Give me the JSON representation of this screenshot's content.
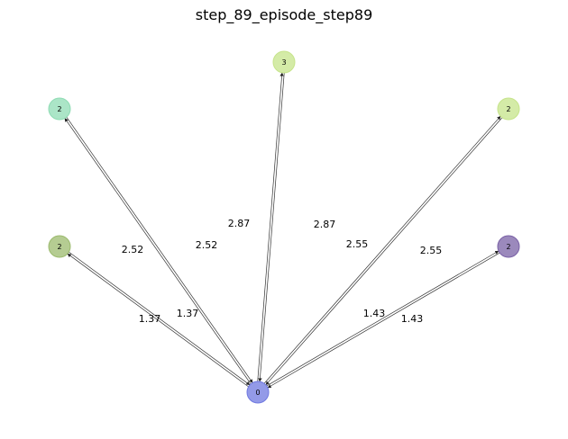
{
  "title": "step_89_episode_step89",
  "nodes": [
    {
      "id": "center",
      "label": "0",
      "color": "#6f78e0"
    },
    {
      "id": "top",
      "label": "3",
      "color": "#c6e48a"
    },
    {
      "id": "upper-left",
      "label": "2",
      "color": "#8fdcb4"
    },
    {
      "id": "upper-right",
      "label": "2",
      "color": "#c6e48a"
    },
    {
      "id": "left",
      "label": "2",
      "color": "#9cbb6e"
    },
    {
      "id": "right",
      "label": "2",
      "color": "#7a61a6"
    }
  ],
  "edges": [
    {
      "id": "center-top",
      "from": "center",
      "to": "top",
      "labels": [
        "2.87",
        "2.87"
      ]
    },
    {
      "id": "center-upper-left",
      "from": "center",
      "to": "upper-left",
      "labels": [
        "2.52",
        "2.52"
      ]
    },
    {
      "id": "center-upper-right",
      "from": "center",
      "to": "upper-right",
      "labels": [
        "2.55",
        "2.55"
      ]
    },
    {
      "id": "center-left",
      "from": "center",
      "to": "left",
      "labels": [
        "1.37",
        "1.37"
      ]
    },
    {
      "id": "center-right",
      "from": "center",
      "to": "right",
      "labels": [
        "1.43",
        "1.43"
      ]
    }
  ]
}
